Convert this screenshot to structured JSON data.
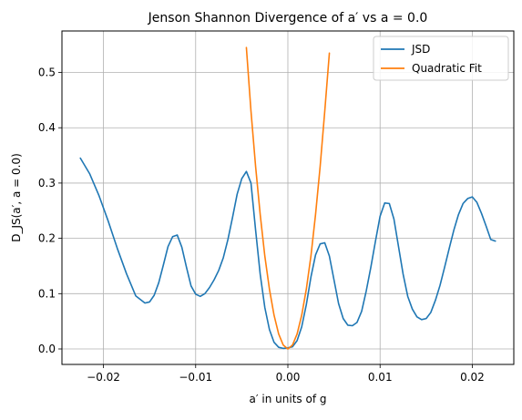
{
  "chart_data": {
    "type": "line",
    "title": "Jenson Shannon Divergence of a′ vs a = 0.0",
    "xlabel": "a′ in units of g",
    "ylabel": "D_JS(a′, a = 0.0)",
    "xlim": [
      -0.0245,
      0.0245
    ],
    "ylim": [
      -0.028,
      0.575
    ],
    "xticks": [
      -0.02,
      -0.01,
      0.0,
      0.01,
      0.02
    ],
    "xtick_labels": [
      "−0.02",
      "−0.01",
      "0.00",
      "0.01",
      "0.02"
    ],
    "yticks": [
      0.0,
      0.1,
      0.2,
      0.3,
      0.4,
      0.5
    ],
    "ytick_labels": [
      "0.0",
      "0.1",
      "0.2",
      "0.3",
      "0.4",
      "0.5"
    ],
    "grid": true,
    "legend_position": "top-right",
    "series": [
      {
        "name": "JSD",
        "color": "#1f77b4",
        "x": [
          -0.0225,
          -0.0215,
          -0.0205,
          -0.0195,
          -0.0185,
          -0.0175,
          -0.0165,
          -0.0155,
          -0.015,
          -0.0145,
          -0.014,
          -0.0135,
          -0.013,
          -0.0125,
          -0.012,
          -0.0115,
          -0.011,
          -0.0105,
          -0.01,
          -0.0095,
          -0.009,
          -0.0085,
          -0.008,
          -0.0075,
          -0.007,
          -0.0065,
          -0.006,
          -0.0055,
          -0.005,
          -0.0045,
          -0.004,
          -0.0035,
          -0.003,
          -0.0025,
          -0.002,
          -0.0015,
          -0.001,
          -0.0005,
          0.0,
          0.0005,
          0.001,
          0.0015,
          0.002,
          0.0025,
          0.003,
          0.0035,
          0.004,
          0.0045,
          0.005,
          0.0055,
          0.006,
          0.0065,
          0.007,
          0.0075,
          0.008,
          0.0085,
          0.009,
          0.0095,
          0.01,
          0.0105,
          0.011,
          0.0115,
          0.012,
          0.0125,
          0.013,
          0.0135,
          0.014,
          0.0145,
          0.015,
          0.0155,
          0.016,
          0.0165,
          0.017,
          0.0175,
          0.018,
          0.0185,
          0.019,
          0.0195,
          0.02,
          0.0205,
          0.021,
          0.0215,
          0.022,
          0.0225
        ],
        "y": [
          0.345,
          0.317,
          0.278,
          0.232,
          0.182,
          0.136,
          0.096,
          0.083,
          0.085,
          0.097,
          0.12,
          0.152,
          0.185,
          0.203,
          0.206,
          0.184,
          0.148,
          0.114,
          0.099,
          0.095,
          0.1,
          0.111,
          0.125,
          0.142,
          0.165,
          0.198,
          0.238,
          0.28,
          0.308,
          0.321,
          0.3,
          0.215,
          0.135,
          0.075,
          0.035,
          0.012,
          0.003,
          0.001,
          0.002,
          0.004,
          0.015,
          0.04,
          0.08,
          0.13,
          0.17,
          0.19,
          0.192,
          0.168,
          0.125,
          0.082,
          0.055,
          0.043,
          0.042,
          0.048,
          0.068,
          0.105,
          0.148,
          0.195,
          0.24,
          0.264,
          0.263,
          0.235,
          0.185,
          0.135,
          0.095,
          0.072,
          0.058,
          0.053,
          0.055,
          0.066,
          0.088,
          0.115,
          0.148,
          0.182,
          0.215,
          0.243,
          0.263,
          0.272,
          0.275,
          0.265,
          0.245,
          0.222,
          0.198,
          0.195
        ]
      },
      {
        "name": "Quadratic Fit",
        "color": "#ff7f0e",
        "x": [
          -0.0045,
          -0.004,
          -0.0035,
          -0.003,
          -0.0025,
          -0.002,
          -0.0015,
          -0.001,
          -0.0005,
          0.0,
          0.0005,
          0.001,
          0.0015,
          0.002,
          0.0025,
          0.003,
          0.0035,
          0.004,
          0.0045
        ],
        "y": [
          0.545,
          0.43,
          0.33,
          0.243,
          0.168,
          0.108,
          0.061,
          0.027,
          0.007,
          0.0,
          0.007,
          0.027,
          0.061,
          0.108,
          0.168,
          0.243,
          0.33,
          0.43,
          0.535
        ]
      }
    ]
  }
}
